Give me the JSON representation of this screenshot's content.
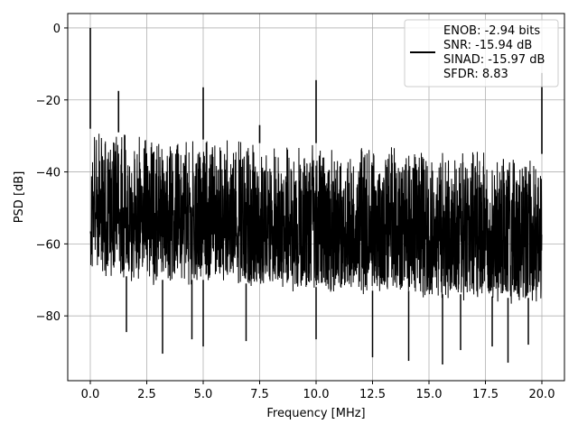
{
  "chart_data": {
    "type": "line",
    "title": "",
    "xlabel": "Frequency [MHz]",
    "ylabel": "PSD [dB]",
    "xlim": [
      -1.0,
      21.0
    ],
    "ylim": [
      -98,
      4
    ],
    "xticks": [
      0.0,
      2.5,
      5.0,
      7.5,
      10.0,
      12.5,
      15.0,
      17.5,
      20.0
    ],
    "xtick_labels": [
      "0.0",
      "2.5",
      "5.0",
      "7.5",
      "10.0",
      "12.5",
      "15.0",
      "17.5",
      "20.0"
    ],
    "yticks": [
      0,
      -20,
      -40,
      -60,
      -80
    ],
    "ytick_labels": [
      "0",
      "−20",
      "−40",
      "−60",
      "−80"
    ],
    "grid": true,
    "legend_position": "top-right",
    "series": [
      {
        "color": "#000000",
        "x": [
          0.0,
          0.5,
          1.0,
          1.5,
          2.0,
          2.5,
          3.0,
          3.5,
          4.0,
          4.5,
          5.0,
          5.5,
          6.0,
          6.5,
          7.0,
          7.5,
          8.0,
          8.5,
          9.0,
          9.5,
          10.0,
          10.5,
          11.0,
          11.5,
          12.0,
          12.5,
          13.0,
          13.5,
          14.0,
          14.5,
          15.0,
          15.5,
          16.0,
          16.5,
          17.0,
          17.5,
          18.0,
          18.5,
          19.0,
          19.5,
          20.0
        ],
        "upper_envelope": [
          -28,
          -29,
          -29,
          -29,
          -30,
          -30,
          -30,
          -30,
          -31,
          -31,
          -31,
          -31,
          -31,
          -31,
          -32,
          -32,
          -32,
          -32,
          -32,
          -32,
          -32,
          -33,
          -33,
          -33,
          -33,
          -33,
          -33,
          -33,
          -34,
          -34,
          -34,
          -34,
          -34,
          -34,
          -34,
          -34,
          -34,
          -35,
          -35,
          -35,
          -35
        ],
        "lower_envelope": [
          -68,
          -68,
          -69,
          -69,
          -69,
          -69,
          -70,
          -70,
          -70,
          -70,
          -70,
          -70,
          -71,
          -71,
          -71,
          -71,
          -71,
          -71,
          -72,
          -72,
          -72,
          -72,
          -72,
          -72,
          -73,
          -73,
          -73,
          -73,
          -73,
          -73,
          -74,
          -74,
          -74,
          -74,
          -74,
          -74,
          -75,
          -75,
          -75,
          -75,
          -76
        ],
        "peaks": [
          {
            "x": 0.0,
            "y": 0.0
          },
          {
            "x": 1.25,
            "y": -17.5
          },
          {
            "x": 5.0,
            "y": -16.5
          },
          {
            "x": 7.5,
            "y": -27.0
          },
          {
            "x": 10.0,
            "y": -14.5
          },
          {
            "x": 20.0,
            "y": -12.5
          }
        ],
        "dips": [
          {
            "x": 1.6,
            "y": -84.5
          },
          {
            "x": 3.2,
            "y": -90.5
          },
          {
            "x": 4.5,
            "y": -86.5
          },
          {
            "x": 5.0,
            "y": -88.5
          },
          {
            "x": 6.9,
            "y": -87.0
          },
          {
            "x": 10.0,
            "y": -86.5
          },
          {
            "x": 12.5,
            "y": -91.5
          },
          {
            "x": 14.1,
            "y": -92.5
          },
          {
            "x": 15.6,
            "y": -93.5
          },
          {
            "x": 16.4,
            "y": -89.5
          },
          {
            "x": 17.8,
            "y": -88.5
          },
          {
            "x": 18.5,
            "y": -93.0
          },
          {
            "x": 19.4,
            "y": -88.0
          }
        ]
      }
    ],
    "legend_lines": [
      "ENOB: -2.94 bits",
      "SNR: -15.94 dB",
      "SINAD: -15.97 dB",
      "SFDR: 8.83"
    ]
  }
}
